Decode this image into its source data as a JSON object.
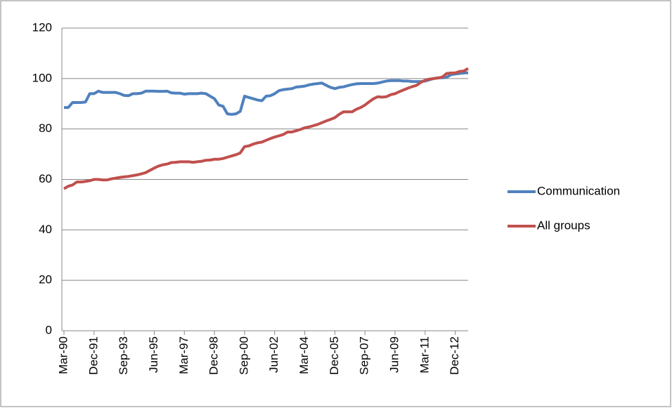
{
  "chart_data": {
    "type": "line",
    "categories": [
      "Mar-90",
      null,
      null,
      null,
      null,
      null,
      null,
      "Dec-91",
      null,
      null,
      null,
      null,
      null,
      null,
      "Sep-93",
      null,
      null,
      null,
      null,
      null,
      null,
      "Jun-95",
      null,
      null,
      null,
      null,
      null,
      null,
      "Mar-97",
      null,
      null,
      null,
      null,
      null,
      null,
      "Dec-98",
      null,
      null,
      null,
      null,
      null,
      null,
      "Sep-00",
      null,
      null,
      null,
      null,
      null,
      null,
      "Jun-02",
      null,
      null,
      null,
      null,
      null,
      null,
      "Mar-04",
      null,
      null,
      null,
      null,
      null,
      null,
      "Dec-05",
      null,
      null,
      null,
      null,
      null,
      null,
      "Sep-07",
      null,
      null,
      null,
      null,
      null,
      null,
      "Jun-09",
      null,
      null,
      null,
      null,
      null,
      null,
      "Mar-11",
      null,
      null,
      null,
      null,
      null,
      null,
      "Dec-12",
      null,
      null,
      null
    ],
    "series": [
      {
        "name": "Communication",
        "color": "#4f81bd",
        "values": [
          88.5,
          88.5,
          90.5,
          90.5,
          90.5,
          90.7,
          94,
          94,
          95,
          94.5,
          94.5,
          94.5,
          94.5,
          94,
          93.3,
          93.2,
          94,
          94,
          94.2,
          95,
          95,
          95,
          94.9,
          94.9,
          95,
          94.3,
          94.2,
          94.2,
          93.8,
          94,
          94,
          94,
          94.2,
          94,
          93,
          92,
          89.5,
          89,
          86,
          85.8,
          86,
          87,
          93,
          92.5,
          92,
          91.5,
          91.2,
          93,
          93.2,
          94,
          95.2,
          95.6,
          95.8,
          96,
          96.6,
          96.8,
          97,
          97.5,
          97.8,
          98,
          98.2,
          97.3,
          96.5,
          96,
          96.5,
          96.7,
          97.2,
          97.6,
          97.9,
          98,
          98,
          98,
          98,
          98.2,
          98.6,
          99,
          99.2,
          99.2,
          99.2,
          99,
          99,
          98.8,
          98.8,
          98.8,
          99,
          99.5,
          100,
          100.3,
          100.3,
          100.5,
          101.5,
          101.8,
          102,
          102.2,
          102.3
        ]
      },
      {
        "name": "All groups",
        "color": "#c0504d",
        "values": [
          56.3,
          57.3,
          57.8,
          59,
          59,
          59.2,
          59.5,
          60,
          60,
          59.8,
          59.8,
          60.2,
          60.5,
          60.8,
          61,
          61.2,
          61.5,
          61.8,
          62.2,
          62.7,
          63.6,
          64.5,
          65.3,
          65.8,
          66.1,
          66.7,
          66.8,
          67,
          67,
          67,
          66.8,
          67,
          67.2,
          67.6,
          67.7,
          68,
          68,
          68.3,
          68.8,
          69.3,
          69.8,
          70.5,
          73,
          73.3,
          74,
          74.5,
          74.8,
          75.5,
          76.2,
          76.8,
          77.3,
          77.8,
          78.8,
          78.8,
          79.3,
          79.8,
          80.5,
          80.8,
          81.3,
          81.8,
          82.5,
          83.2,
          83.8,
          84.5,
          85.8,
          86.8,
          86.8,
          86.8,
          87.8,
          88.5,
          89.5,
          90.8,
          92,
          92.8,
          92.6,
          92.8,
          93.6,
          94,
          94.8,
          95.5,
          96.2,
          96.8,
          97.3,
          98.5,
          99.3,
          99.8,
          100,
          100.2,
          100.6,
          102,
          102.2,
          102.2,
          102.8,
          103,
          104
        ]
      }
    ],
    "ylim": [
      0,
      120
    ],
    "yticks": [
      0,
      20,
      40,
      60,
      80,
      100,
      120
    ],
    "grid": true,
    "legend": "right"
  }
}
